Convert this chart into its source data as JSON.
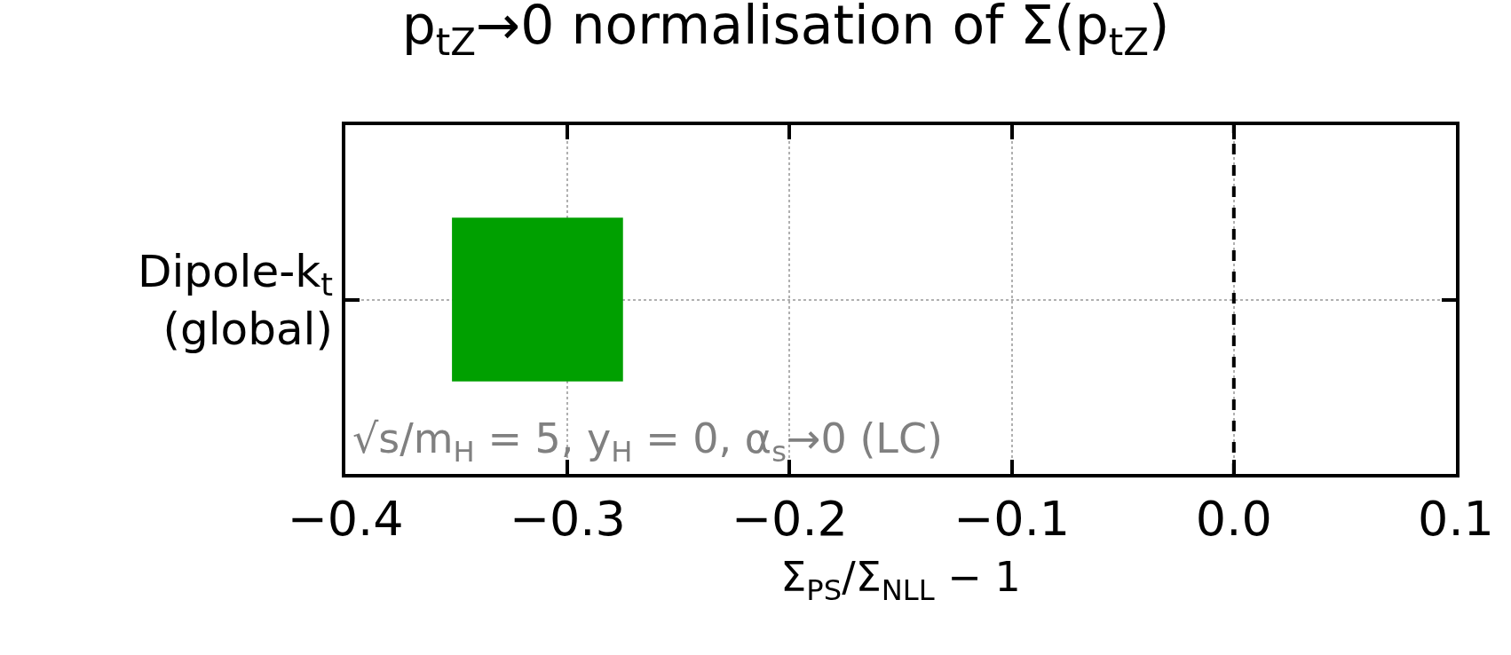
{
  "chart_data": {
    "type": "bar",
    "orientation": "horizontal",
    "title": "p$_{tZ}$→0 normalisation of Σ(p$_{tZ}$)",
    "xlabel": "Σ$_{PS}$/Σ$_{NLL}$ − 1",
    "categories": [
      "Dipole-k$_{t}$\n(global)"
    ],
    "base": [
      -0.352
    ],
    "values": [
      0.077
    ],
    "color": "#00a000",
    "xlim": [
      -0.4,
      0.1
    ],
    "xticks": [
      -0.4,
      -0.3,
      -0.2,
      -0.1,
      {
        "value": 0,
        "label": "0.0"
      },
      0.1
    ],
    "grid": true,
    "ref_lines": [
      {
        "axis": "x",
        "value": 0,
        "label": null,
        "color": "#000000",
        "line_style": "dashed"
      }
    ],
    "annotations": [
      "√s/m$_{H}$ = 5, y$_{H}$ = 0, α$_{s}$→0 (LC)"
    ]
  }
}
